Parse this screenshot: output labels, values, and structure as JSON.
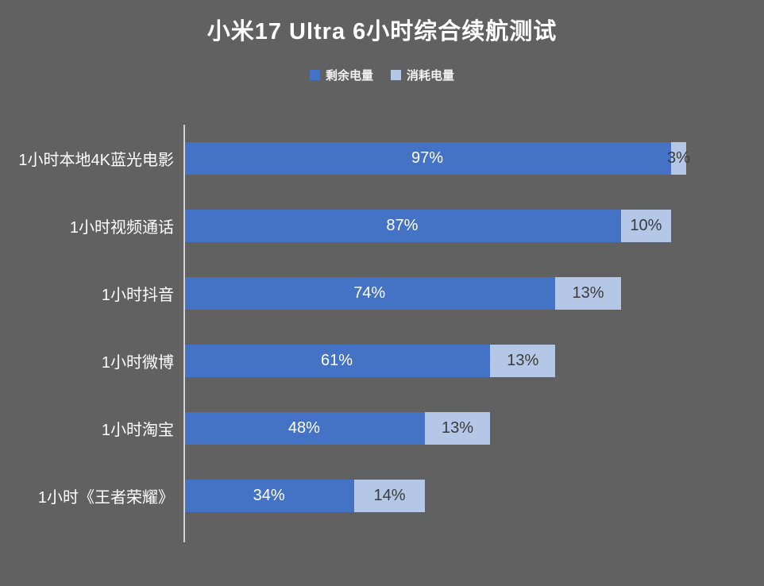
{
  "title": "小米17 Ultra 6小时综合续航测试",
  "colors": {
    "background": "#616161",
    "remaining": "#4472C4",
    "consumed": "#B4C7E7",
    "axis": "#D4D4D4",
    "remaining_label_text": "#FFFFFF",
    "consumed_label_text": "#3B3B3B",
    "title_text": "#FFFFFF"
  },
  "legend": {
    "items": [
      {
        "label": "剩余电量",
        "color": "#4472C4"
      },
      {
        "label": "消耗电量",
        "color": "#B4C7E7"
      }
    ]
  },
  "chart_data": {
    "type": "bar",
    "orientation": "horizontal",
    "stacked": true,
    "title": "小米17 Ultra 6小时综合续航测试",
    "categories": [
      "1小时本地4K蓝光电影",
      "1小时视频通话",
      "1小时抖音",
      "1小时微博",
      "1小时淘宝",
      "1小时《王者荣耀》"
    ],
    "series": [
      {
        "name": "剩余电量",
        "color": "#4472C4",
        "values": [
          97,
          87,
          74,
          61,
          48,
          34
        ]
      },
      {
        "name": "消耗电量",
        "color": "#B4C7E7",
        "values": [
          3,
          10,
          13,
          13,
          13,
          14
        ]
      }
    ],
    "value_suffix": "%",
    "xlim": [
      0,
      100
    ],
    "grid": false,
    "legend_position": "top"
  }
}
